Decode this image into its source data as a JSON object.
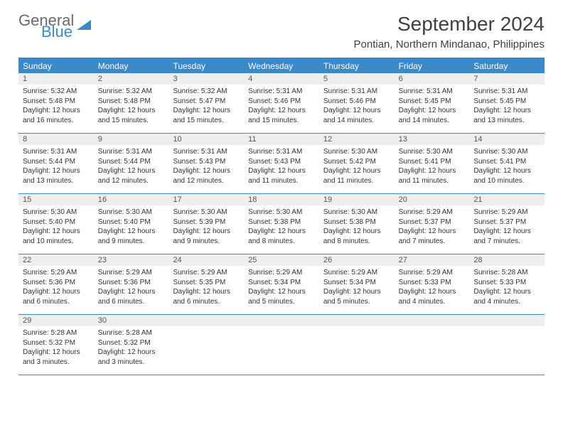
{
  "brand": {
    "general": "General",
    "blue": "Blue"
  },
  "title": "September 2024",
  "location": "Pontian, Northern Mindanao, Philippines",
  "colors": {
    "accent": "#3a8ac9",
    "header_bg": "#eeeeee",
    "text": "#333333",
    "background": "#ffffff"
  },
  "dayNames": [
    "Sunday",
    "Monday",
    "Tuesday",
    "Wednesday",
    "Thursday",
    "Friday",
    "Saturday"
  ],
  "calendar": {
    "type": "table",
    "weeks": [
      [
        {
          "num": "1",
          "sunrise": "Sunrise: 5:32 AM",
          "sunset": "Sunset: 5:48 PM",
          "daylight": "Daylight: 12 hours and 16 minutes."
        },
        {
          "num": "2",
          "sunrise": "Sunrise: 5:32 AM",
          "sunset": "Sunset: 5:48 PM",
          "daylight": "Daylight: 12 hours and 15 minutes."
        },
        {
          "num": "3",
          "sunrise": "Sunrise: 5:32 AM",
          "sunset": "Sunset: 5:47 PM",
          "daylight": "Daylight: 12 hours and 15 minutes."
        },
        {
          "num": "4",
          "sunrise": "Sunrise: 5:31 AM",
          "sunset": "Sunset: 5:46 PM",
          "daylight": "Daylight: 12 hours and 15 minutes."
        },
        {
          "num": "5",
          "sunrise": "Sunrise: 5:31 AM",
          "sunset": "Sunset: 5:46 PM",
          "daylight": "Daylight: 12 hours and 14 minutes."
        },
        {
          "num": "6",
          "sunrise": "Sunrise: 5:31 AM",
          "sunset": "Sunset: 5:45 PM",
          "daylight": "Daylight: 12 hours and 14 minutes."
        },
        {
          "num": "7",
          "sunrise": "Sunrise: 5:31 AM",
          "sunset": "Sunset: 5:45 PM",
          "daylight": "Daylight: 12 hours and 13 minutes."
        }
      ],
      [
        {
          "num": "8",
          "sunrise": "Sunrise: 5:31 AM",
          "sunset": "Sunset: 5:44 PM",
          "daylight": "Daylight: 12 hours and 13 minutes."
        },
        {
          "num": "9",
          "sunrise": "Sunrise: 5:31 AM",
          "sunset": "Sunset: 5:44 PM",
          "daylight": "Daylight: 12 hours and 12 minutes."
        },
        {
          "num": "10",
          "sunrise": "Sunrise: 5:31 AM",
          "sunset": "Sunset: 5:43 PM",
          "daylight": "Daylight: 12 hours and 12 minutes."
        },
        {
          "num": "11",
          "sunrise": "Sunrise: 5:31 AM",
          "sunset": "Sunset: 5:43 PM",
          "daylight": "Daylight: 12 hours and 11 minutes."
        },
        {
          "num": "12",
          "sunrise": "Sunrise: 5:30 AM",
          "sunset": "Sunset: 5:42 PM",
          "daylight": "Daylight: 12 hours and 11 minutes."
        },
        {
          "num": "13",
          "sunrise": "Sunrise: 5:30 AM",
          "sunset": "Sunset: 5:41 PM",
          "daylight": "Daylight: 12 hours and 11 minutes."
        },
        {
          "num": "14",
          "sunrise": "Sunrise: 5:30 AM",
          "sunset": "Sunset: 5:41 PM",
          "daylight": "Daylight: 12 hours and 10 minutes."
        }
      ],
      [
        {
          "num": "15",
          "sunrise": "Sunrise: 5:30 AM",
          "sunset": "Sunset: 5:40 PM",
          "daylight": "Daylight: 12 hours and 10 minutes."
        },
        {
          "num": "16",
          "sunrise": "Sunrise: 5:30 AM",
          "sunset": "Sunset: 5:40 PM",
          "daylight": "Daylight: 12 hours and 9 minutes."
        },
        {
          "num": "17",
          "sunrise": "Sunrise: 5:30 AM",
          "sunset": "Sunset: 5:39 PM",
          "daylight": "Daylight: 12 hours and 9 minutes."
        },
        {
          "num": "18",
          "sunrise": "Sunrise: 5:30 AM",
          "sunset": "Sunset: 5:38 PM",
          "daylight": "Daylight: 12 hours and 8 minutes."
        },
        {
          "num": "19",
          "sunrise": "Sunrise: 5:30 AM",
          "sunset": "Sunset: 5:38 PM",
          "daylight": "Daylight: 12 hours and 8 minutes."
        },
        {
          "num": "20",
          "sunrise": "Sunrise: 5:29 AM",
          "sunset": "Sunset: 5:37 PM",
          "daylight": "Daylight: 12 hours and 7 minutes."
        },
        {
          "num": "21",
          "sunrise": "Sunrise: 5:29 AM",
          "sunset": "Sunset: 5:37 PM",
          "daylight": "Daylight: 12 hours and 7 minutes."
        }
      ],
      [
        {
          "num": "22",
          "sunrise": "Sunrise: 5:29 AM",
          "sunset": "Sunset: 5:36 PM",
          "daylight": "Daylight: 12 hours and 6 minutes."
        },
        {
          "num": "23",
          "sunrise": "Sunrise: 5:29 AM",
          "sunset": "Sunset: 5:36 PM",
          "daylight": "Daylight: 12 hours and 6 minutes."
        },
        {
          "num": "24",
          "sunrise": "Sunrise: 5:29 AM",
          "sunset": "Sunset: 5:35 PM",
          "daylight": "Daylight: 12 hours and 6 minutes."
        },
        {
          "num": "25",
          "sunrise": "Sunrise: 5:29 AM",
          "sunset": "Sunset: 5:34 PM",
          "daylight": "Daylight: 12 hours and 5 minutes."
        },
        {
          "num": "26",
          "sunrise": "Sunrise: 5:29 AM",
          "sunset": "Sunset: 5:34 PM",
          "daylight": "Daylight: 12 hours and 5 minutes."
        },
        {
          "num": "27",
          "sunrise": "Sunrise: 5:29 AM",
          "sunset": "Sunset: 5:33 PM",
          "daylight": "Daylight: 12 hours and 4 minutes."
        },
        {
          "num": "28",
          "sunrise": "Sunrise: 5:28 AM",
          "sunset": "Sunset: 5:33 PM",
          "daylight": "Daylight: 12 hours and 4 minutes."
        }
      ],
      [
        {
          "num": "29",
          "sunrise": "Sunrise: 5:28 AM",
          "sunset": "Sunset: 5:32 PM",
          "daylight": "Daylight: 12 hours and 3 minutes."
        },
        {
          "num": "30",
          "sunrise": "Sunrise: 5:28 AM",
          "sunset": "Sunset: 5:32 PM",
          "daylight": "Daylight: 12 hours and 3 minutes."
        },
        {
          "empty": true
        },
        {
          "empty": true
        },
        {
          "empty": true
        },
        {
          "empty": true
        },
        {
          "empty": true
        }
      ]
    ]
  }
}
